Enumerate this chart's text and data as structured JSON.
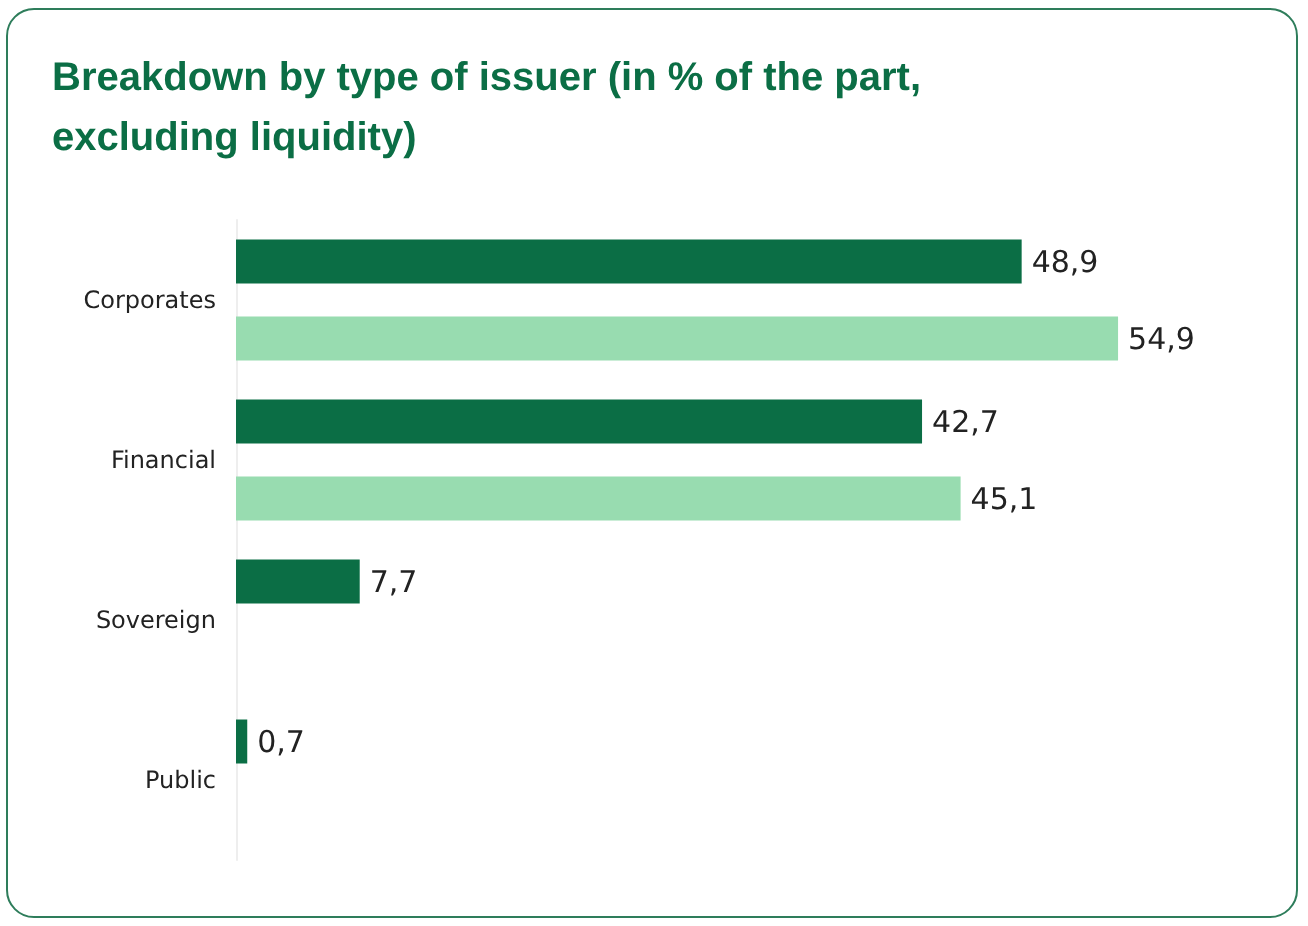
{
  "chart_data": {
    "type": "bar",
    "orientation": "horizontal",
    "title": "Breakdown by type of issuer (in % of the part, excluding liquidity)",
    "categories": [
      "Corporates",
      "Financial",
      "Sovereign",
      "Public"
    ],
    "series": [
      {
        "color": "#0b6e45",
        "values": [
          48.9,
          42.7,
          7.7,
          0.7
        ],
        "value_labels": [
          "48,9",
          "42,7",
          "7,7",
          "0,7"
        ]
      },
      {
        "color": "#98dcb0",
        "values": [
          54.9,
          45.1,
          null,
          null
        ],
        "value_labels": [
          "54,9",
          "45,1",
          null,
          null
        ]
      }
    ],
    "grid": false,
    "tick_labels": "y"
  }
}
